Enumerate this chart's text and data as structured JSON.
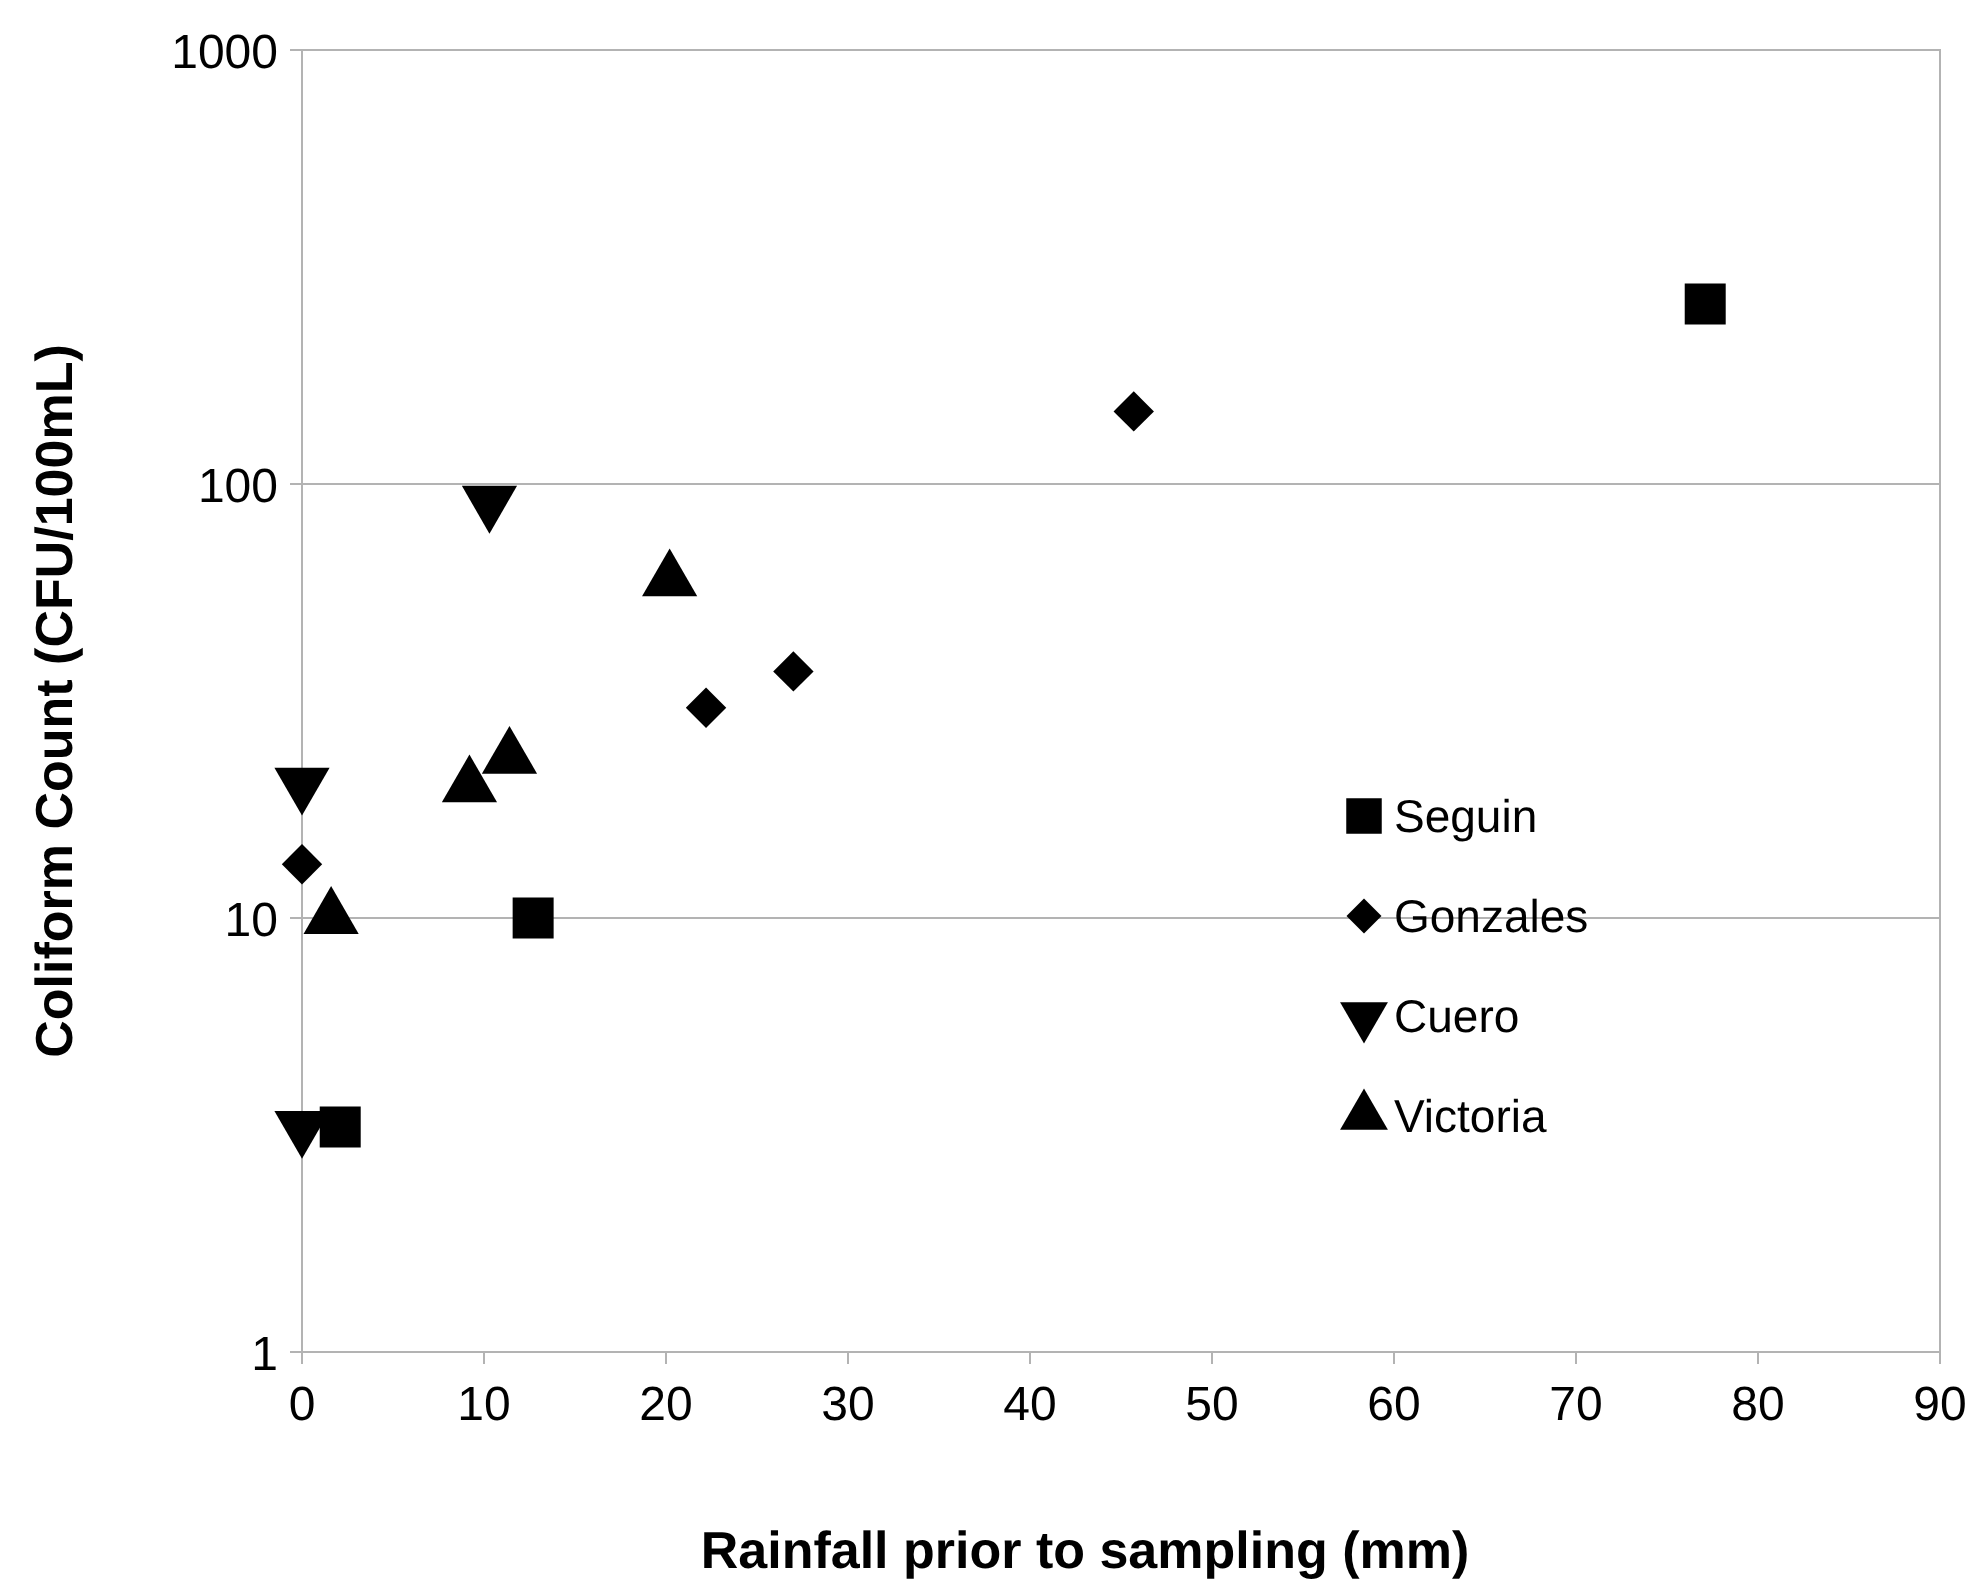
{
  "chart_data": {
    "type": "scatter",
    "xlabel": "Rainfall prior to sampling (mm)",
    "ylabel": "Coliform Count (CFU/100mL)",
    "log": "y",
    "xlim": [
      0,
      90
    ],
    "xticks": [
      0,
      10,
      20,
      30,
      40,
      50,
      60,
      70,
      80,
      90
    ],
    "ylim": [
      1,
      1000
    ],
    "yticks": [
      1,
      10,
      100,
      1000
    ],
    "grid": "y",
    "legend": "right",
    "series": [
      {
        "name": "Seguin",
        "color": "#000000",
        "marker": "square",
        "x": [
          77.1,
          12.7,
          2.1
        ],
        "values": [
          260,
          10,
          3.3
        ]
      },
      {
        "name": "Gonzales",
        "color": "#000000",
        "marker": "diamond",
        "x": [
          45.7,
          27.0,
          22.2,
          0
        ],
        "values": [
          147,
          37,
          30.5,
          13.3
        ]
      },
      {
        "name": "Cuero",
        "color": "#000000",
        "marker": "triangle-down",
        "x": [
          10.3,
          0,
          0
        ],
        "values": [
          91,
          20.4,
          3.3
        ]
      },
      {
        "name": "Victoria",
        "color": "#000000",
        "marker": "triangle",
        "x": [
          20.2,
          11.4,
          9.2,
          1.6
        ],
        "values": [
          60,
          23.4,
          20.1,
          10
        ]
      }
    ]
  }
}
